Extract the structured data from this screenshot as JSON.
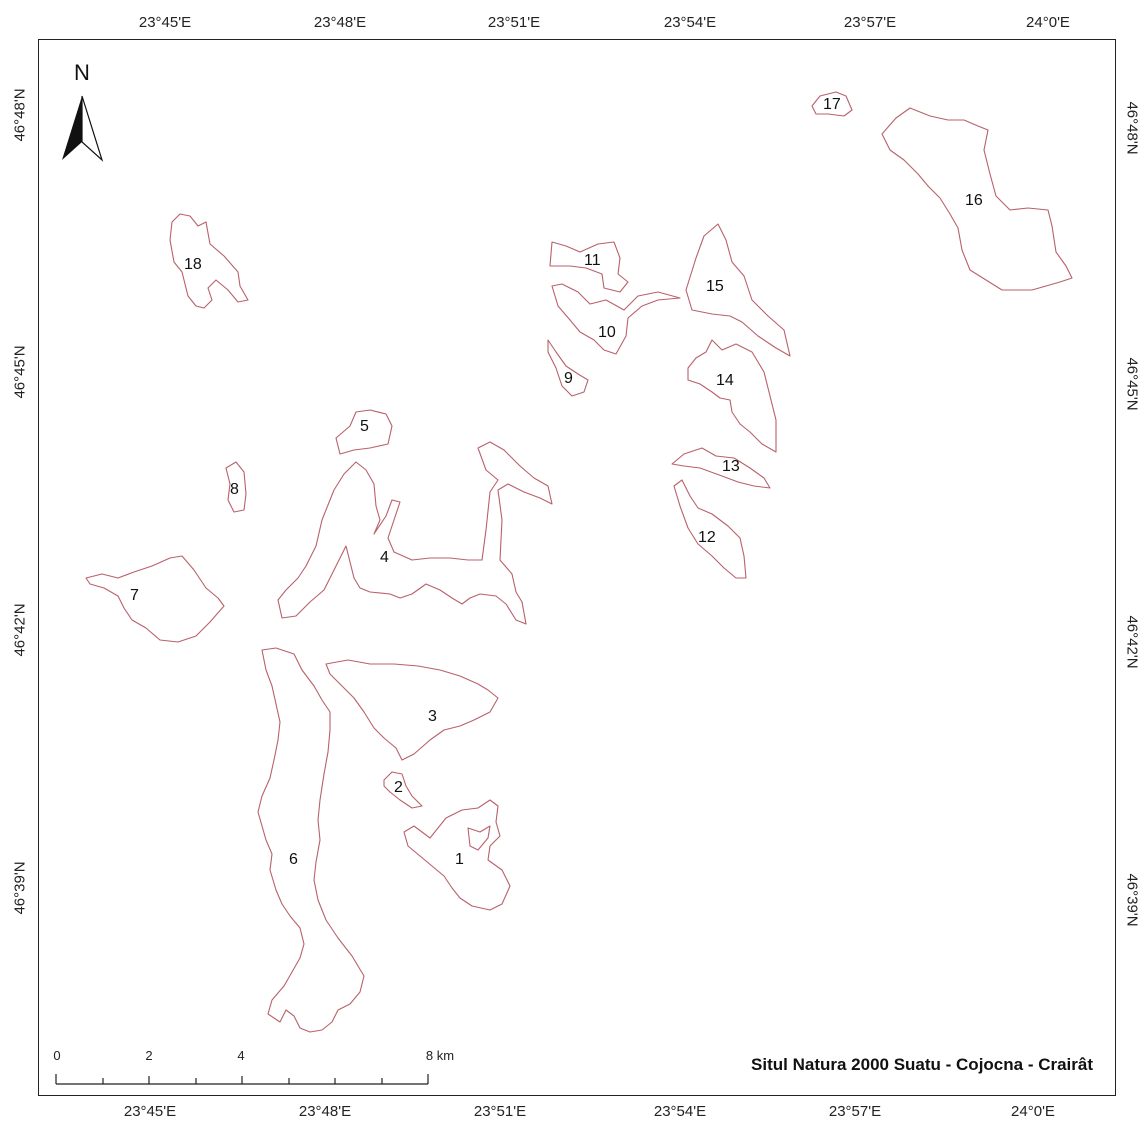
{
  "map": {
    "title": "Situl Natura 2000 Suatu - Cojocna - Crairât",
    "north_label": "N",
    "top_ticks": [
      "23°45'E",
      "23°48'E",
      "23°51'E",
      "23°54'E",
      "23°57'E",
      "24°0'E"
    ],
    "bottom_ticks": [
      "23°45'E",
      "23°48'E",
      "23°51'E",
      "23°54'E",
      "23°57'E",
      "24°0'E"
    ],
    "left_ticks": [
      "46°48'N",
      "46°45'N",
      "46°42'N",
      "46°39'N"
    ],
    "right_ticks": [
      "46°48'N",
      "46°45'N",
      "46°42'N",
      "46°39'N"
    ],
    "scale": {
      "labels": [
        "0",
        "2",
        "4",
        "8 km"
      ]
    },
    "sites": [
      {
        "id": "1",
        "label": "1"
      },
      {
        "id": "2",
        "label": "2"
      },
      {
        "id": "3",
        "label": "3"
      },
      {
        "id": "4",
        "label": "4"
      },
      {
        "id": "5",
        "label": "5"
      },
      {
        "id": "6",
        "label": "6"
      },
      {
        "id": "7",
        "label": "7"
      },
      {
        "id": "8",
        "label": "8"
      },
      {
        "id": "9",
        "label": "9"
      },
      {
        "id": "10",
        "label": "10"
      },
      {
        "id": "11",
        "label": "11"
      },
      {
        "id": "12",
        "label": "12"
      },
      {
        "id": "13",
        "label": "13"
      },
      {
        "id": "14",
        "label": "14"
      },
      {
        "id": "15",
        "label": "15"
      },
      {
        "id": "16",
        "label": "16"
      },
      {
        "id": "17",
        "label": "17"
      },
      {
        "id": "18",
        "label": "18"
      }
    ],
    "outline_color": "#b9616a"
  }
}
